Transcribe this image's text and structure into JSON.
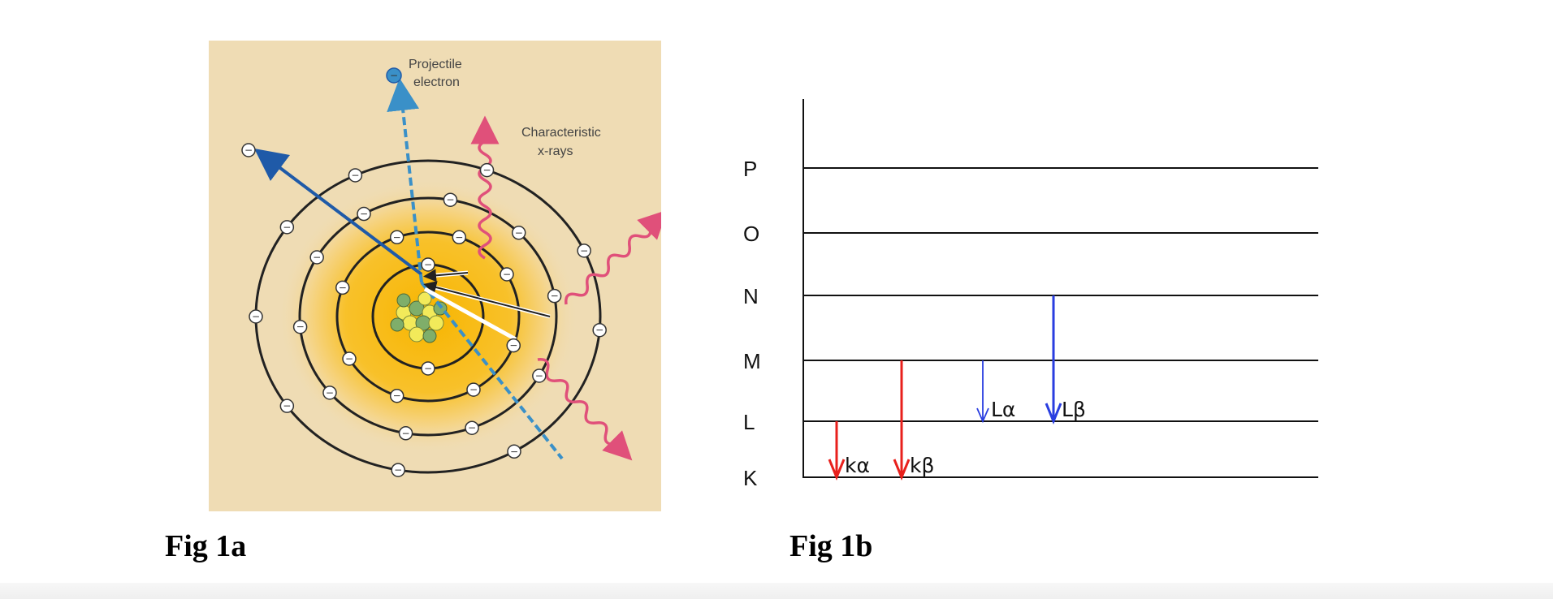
{
  "fig1a": {
    "caption": "Fig 1a",
    "labels": {
      "projectile_line1": "Projectile",
      "projectile_line2": "electron",
      "xray_line1": "Characteristic",
      "xray_line2": "x-rays"
    },
    "electron_symbol": "−",
    "colors": {
      "background": "#efdcb4",
      "glow": "#f7b500",
      "ejected_arrow": "#1f5aa8",
      "projectile": "#3a90c8",
      "xray": "#e0507a"
    }
  },
  "fig1b": {
    "caption": "Fig 1b",
    "levels": [
      "P",
      "O",
      "N",
      "M",
      "L",
      "K"
    ],
    "transitions": [
      {
        "label": "kα",
        "from": "L",
        "to": "K",
        "color": "#e8201c"
      },
      {
        "label": "kβ",
        "from": "M",
        "to": "K",
        "color": "#e8201c"
      },
      {
        "label": "Lα",
        "from": "M",
        "to": "L",
        "color": "#2a3ee0"
      },
      {
        "label": "Lβ",
        "from": "N",
        "to": "L",
        "color": "#2a3ee0"
      }
    ]
  }
}
